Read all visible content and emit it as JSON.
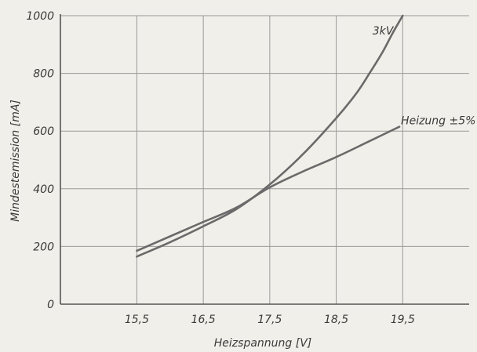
{
  "chart_data": {
    "type": "line",
    "xlabel": "Heizspannung [V]",
    "ylabel": "Mindestemission [mA]",
    "xlim": [
      14.35,
      20.5
    ],
    "ylim": [
      0,
      1000
    ],
    "x_ticks": [
      15.5,
      16.5,
      17.5,
      18.5,
      19.5
    ],
    "x_tick_labels": [
      "15,5",
      "16,5",
      "17,5",
      "18,5",
      "19,5"
    ],
    "x_grid": [
      15.5,
      16.5,
      17.5,
      18.5,
      19.5
    ],
    "y_ticks": [
      0,
      200,
      400,
      600,
      800,
      1000
    ],
    "y_tick_labels": [
      "0",
      "200",
      "400",
      "600",
      "800",
      "1000"
    ],
    "grid": true,
    "colors": {
      "curve": "#6a6a6a",
      "grid": "#9a9a9a",
      "axis": "#555555",
      "text": "#3a3a3a"
    },
    "series": [
      {
        "name": "3kV",
        "x": [
          15.5,
          16.0,
          16.5,
          17.0,
          17.5,
          18.0,
          18.5,
          18.8,
          19.0,
          19.2,
          19.35,
          19.5
        ],
        "values": [
          165,
          215,
          270,
          330,
          415,
          520,
          645,
          730,
          800,
          875,
          940,
          1000
        ]
      },
      {
        "name": "Heizung ±5%",
        "x": [
          15.5,
          16.0,
          16.5,
          17.0,
          17.5,
          18.0,
          18.5,
          19.0,
          19.45
        ],
        "values": [
          185,
          235,
          285,
          335,
          405,
          460,
          510,
          565,
          615
        ]
      }
    ]
  }
}
